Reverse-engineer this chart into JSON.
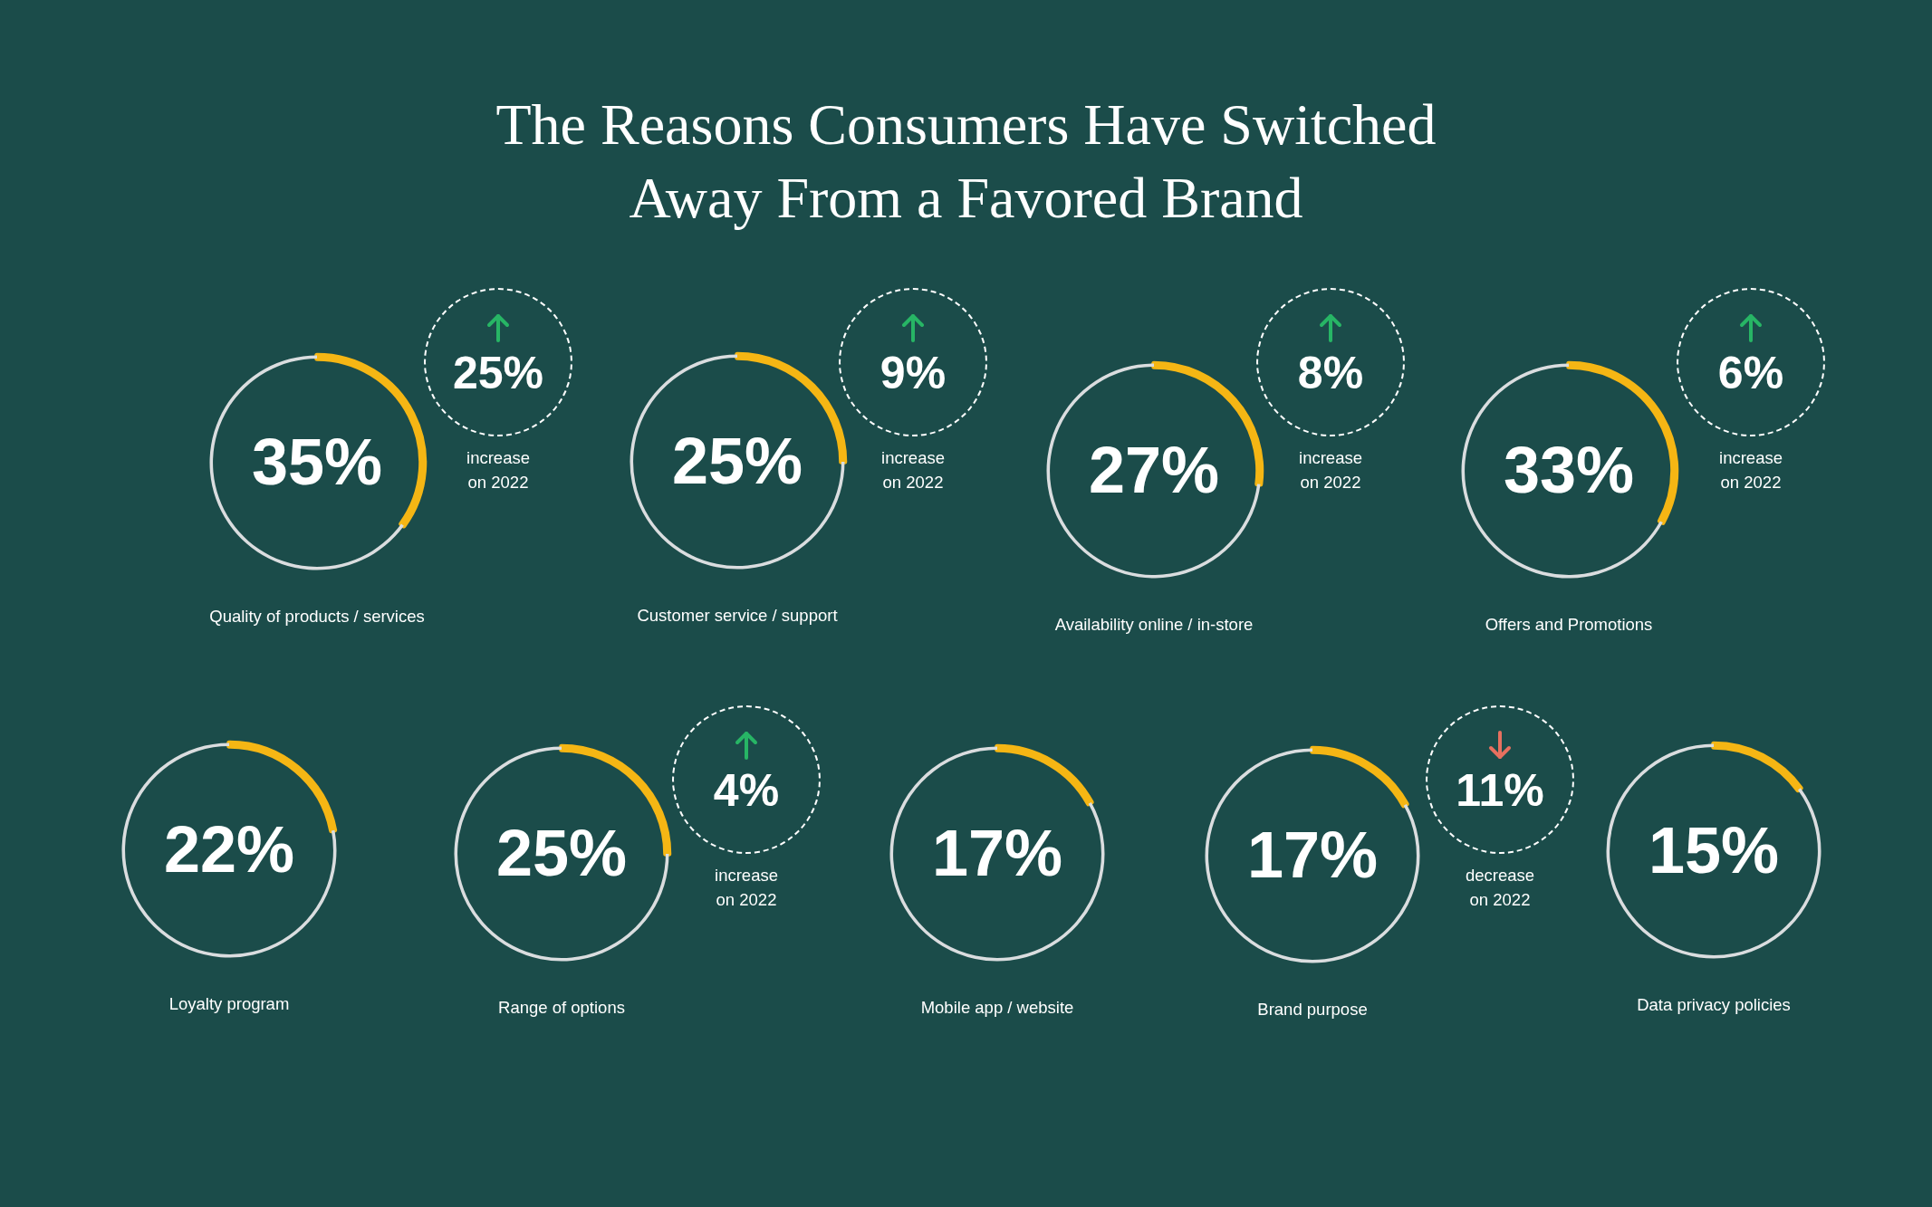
{
  "chart_data": [
    {
      "type": "other",
      "title": "The Reasons Consumers Have Switched Away From a Favored Brand"
    },
    {
      "type": "donut",
      "title": "Quality of products / services",
      "categories": [
        null,
        null
      ],
      "values": [
        35,
        65
      ],
      "colors": [
        "#f5b614",
        "#dadddf"
      ],
      "value_labels": [
        "35%",
        null
      ],
      "annotations": [
        "25%",
        "increase on 2022"
      ]
    },
    {
      "type": "donut",
      "title": "Customer service / support",
      "categories": [
        null,
        null
      ],
      "values": [
        25,
        75
      ],
      "colors": [
        "#f5b614",
        "#dadddf"
      ],
      "value_labels": [
        "25%",
        null
      ],
      "annotations": [
        "9%",
        "increase on 2022"
      ]
    },
    {
      "type": "donut",
      "title": "Availability online / in-store",
      "categories": [
        null,
        null
      ],
      "values": [
        27,
        73
      ],
      "colors": [
        "#f5b614",
        "#dadddf"
      ],
      "value_labels": [
        "27%",
        null
      ],
      "annotations": [
        "8%",
        "increase on 2022"
      ]
    },
    {
      "type": "donut",
      "title": "Offers and Promotions",
      "categories": [
        null,
        null
      ],
      "values": [
        33,
        67
      ],
      "colors": [
        "#f5b614",
        "#dadddf"
      ],
      "value_labels": [
        "33%",
        null
      ],
      "annotations": [
        "6%",
        "increase on 2022"
      ]
    },
    {
      "type": "donut",
      "title": "Loyalty program",
      "categories": [
        null,
        null
      ],
      "values": [
        22,
        78
      ],
      "colors": [
        "#f5b614",
        "#dadddf"
      ],
      "value_labels": [
        "22%",
        null
      ]
    },
    {
      "type": "donut",
      "title": "Range of options",
      "categories": [
        null,
        null
      ],
      "values": [
        25,
        75
      ],
      "colors": [
        "#f5b614",
        "#dadddf"
      ],
      "value_labels": [
        "25%",
        null
      ],
      "annotations": [
        "4%",
        "increase on 2022"
      ]
    },
    {
      "type": "donut",
      "title": "Mobile app / website",
      "categories": [
        null,
        null
      ],
      "values": [
        17,
        83
      ],
      "colors": [
        "#f5b614",
        "#dadddf"
      ],
      "value_labels": [
        "17%",
        null
      ]
    },
    {
      "type": "donut",
      "title": "Brand purpose",
      "categories": [
        null,
        null
      ],
      "values": [
        17,
        83
      ],
      "colors": [
        "#f5b614",
        "#dadddf"
      ],
      "value_labels": [
        "17%",
        null
      ],
      "annotations": [
        "11%",
        "decrease on 2022"
      ]
    },
    {
      "type": "donut",
      "title": "Data privacy policies",
      "categories": [
        null,
        null
      ],
      "values": [
        15,
        85
      ],
      "colors": [
        "#f5b614",
        "#dadddf"
      ],
      "value_labels": [
        "15%",
        null
      ]
    }
  ]
}
